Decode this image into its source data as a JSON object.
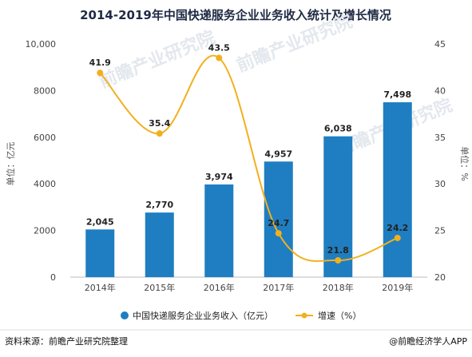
{
  "chart_data": {
    "type": "bar+line",
    "title": "2014-2019年中国快递服务企业业务收入统计及增长情况",
    "categories": [
      "2014年",
      "2015年",
      "2016年",
      "2017年",
      "2018年",
      "2019年"
    ],
    "series": [
      {
        "name": "中国快递服务企业业务收入（亿元）",
        "type": "bar",
        "axis": "left",
        "values": [
          2045,
          2770,
          3974,
          4957,
          6038,
          7498
        ],
        "labels": [
          "2,045",
          "2,770",
          "3,974",
          "4,957",
          "6,038",
          "7,498"
        ],
        "color": "#1f7ec1"
      },
      {
        "name": "增速（%）",
        "type": "line",
        "axis": "right",
        "values": [
          41.9,
          35.4,
          43.5,
          24.7,
          21.8,
          24.2
        ],
        "labels": [
          "41.9",
          "35.4",
          "43.5",
          "24.7",
          "21.8",
          "24.2"
        ],
        "color": "#f2b01e"
      }
    ],
    "y_left": {
      "label": "单位：亿元",
      "range": [
        0,
        10000
      ],
      "ticks": [
        0,
        2000,
        4000,
        6000,
        8000,
        10000
      ],
      "tick_labels": [
        "0",
        "2000",
        "4000",
        "6000",
        "8000",
        "10,000"
      ]
    },
    "y_right": {
      "label": "单位：%",
      "range": [
        20,
        45
      ],
      "ticks": [
        20,
        25,
        30,
        35,
        40,
        45
      ],
      "tick_labels": [
        "20",
        "25",
        "30",
        "35",
        "40",
        "45"
      ]
    },
    "legend_placement": "bottom"
  },
  "footer": {
    "source": "资料来源：前瞻产业研究院整理",
    "brand": "@前瞻经济学人APP"
  },
  "watermark": "前瞻产业研究院"
}
